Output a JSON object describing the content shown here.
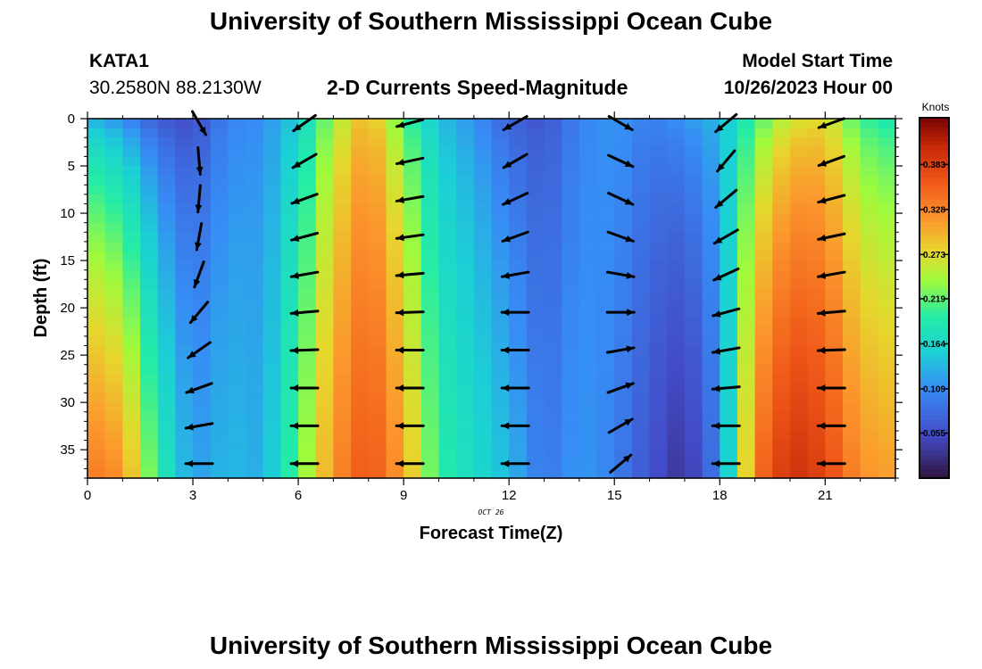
{
  "header": {
    "title": "University of Southern Mississippi Ocean Cube",
    "station": "KATA1",
    "coords": "30.2580N  88.2130W",
    "subtitle": "2-D Currents Speed-Magnitude",
    "model_start_label": "Model Start Time",
    "model_start_value": "10/26/2023 Hour 00"
  },
  "footer": {
    "title": "University of Southern Mississippi Ocean Cube"
  },
  "chart_data": {
    "type": "heatmap",
    "xlabel": "Forecast Time(Z)",
    "ylabel": "Depth (ft)",
    "x_ticks": [
      0,
      3,
      6,
      9,
      12,
      15,
      18,
      21
    ],
    "y_ticks": [
      0,
      5,
      10,
      15,
      20,
      25,
      30,
      35
    ],
    "x_date_label": "OCT 26",
    "xlim": [
      0,
      23
    ],
    "ylim": [
      38,
      0
    ],
    "colorbar": {
      "unit": "Knots",
      "ticks": [
        0.055,
        0.109,
        0.164,
        0.219,
        0.273,
        0.328,
        0.383
      ],
      "range": [
        0.0,
        0.44
      ]
    },
    "speed_profile": {
      "hours": [
        0,
        1,
        2,
        3,
        4,
        5,
        6,
        7,
        8,
        9,
        10,
        11,
        12,
        13,
        14,
        15,
        16,
        17,
        18,
        19,
        20,
        21,
        22,
        23
      ],
      "surface_knots": [
        0.13,
        0.1,
        0.06,
        0.05,
        0.1,
        0.11,
        0.15,
        0.24,
        0.3,
        0.21,
        0.14,
        0.11,
        0.07,
        0.06,
        0.1,
        0.12,
        0.1,
        0.12,
        0.14,
        0.2,
        0.26,
        0.27,
        0.2,
        0.18
      ],
      "bottom_knots": [
        0.34,
        0.32,
        0.2,
        0.12,
        0.14,
        0.13,
        0.22,
        0.32,
        0.37,
        0.31,
        0.2,
        0.17,
        0.14,
        0.09,
        0.12,
        0.1,
        0.06,
        0.03,
        0.1,
        0.34,
        0.4,
        0.38,
        0.32,
        0.31
      ]
    },
    "vectors": {
      "hours": [
        3,
        6,
        9,
        12,
        15,
        18,
        21
      ],
      "depths_ft": [
        0,
        4,
        8,
        12,
        16,
        20,
        24,
        28,
        32,
        36
      ],
      "direction_deg": [
        [
          -60,
          -85,
          -95,
          -100,
          -110,
          -130,
          -145,
          -160,
          -170,
          -180
        ],
        [
          -145,
          -150,
          -160,
          -165,
          -170,
          -175,
          -178,
          -180,
          -180,
          -180
        ],
        [
          -165,
          -168,
          -170,
          -172,
          -175,
          -178,
          -180,
          -180,
          -180,
          -180
        ],
        [
          -150,
          -150,
          -155,
          -160,
          -170,
          -180,
          -180,
          -180,
          -180,
          -180
        ],
        [
          -30,
          -25,
          -25,
          -20,
          -10,
          0,
          10,
          20,
          30,
          40
        ],
        [
          -140,
          -130,
          -140,
          -150,
          -155,
          -165,
          -170,
          -175,
          -180,
          -180
        ],
        [
          -160,
          -160,
          -165,
          -168,
          -170,
          -175,
          -178,
          -180,
          -180,
          -180
        ]
      ]
    }
  }
}
